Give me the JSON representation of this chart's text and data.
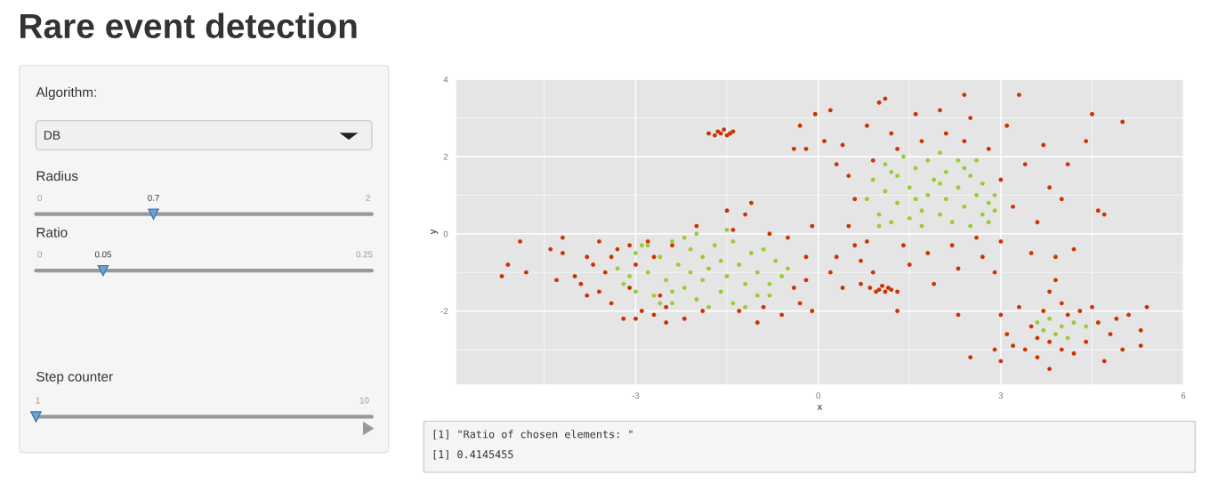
{
  "chart_data": [
    {
      "type": "other",
      "title": "Rare event detection",
      "annotations": [
        "Algorithm:",
        "DB",
        "Radius",
        "0",
        "0.7",
        "2",
        "Ratio",
        "0",
        "0.05",
        "0.25",
        "Step counter",
        "1",
        "10"
      ]
    },
    {
      "type": "scatter",
      "xlabel": "x",
      "ylabel": "y",
      "xlim": [
        -5.95,
        6
      ],
      "ylim": [
        -3.9,
        4
      ],
      "xticks": [
        -3,
        0,
        3,
        6
      ],
      "yticks": [
        -2,
        0,
        2,
        4
      ],
      "grid": true,
      "marker": "circle",
      "legend": false,
      "annotations": [
        "[1] \"Ratio of chosen elements: \"",
        "[1] 0.4145455"
      ],
      "series": [
        {
          "color": "#cc3300",
          "x": [
            -5.2,
            -5.1,
            -4.9,
            -4.8,
            -4.4,
            -4.3,
            -4.2,
            -4.2,
            -4.0,
            -3.9,
            -3.8,
            -3.8,
            -3.7,
            -3.6,
            -3.6,
            -3.5,
            -3.4,
            -3.4,
            -3.3,
            -3.2,
            -3.1,
            -3.1,
            -3.0,
            -3.0,
            -2.8,
            -2.7,
            -2.6,
            -2.5,
            -2.4,
            -2.9,
            -2.7,
            -2.5,
            -2.2,
            -2.0,
            -1.9,
            -1.5,
            -1.4,
            -1.3,
            -1.2,
            -1.1,
            -1.0,
            -0.8,
            -0.6,
            -0.5,
            -0.4,
            -0.3,
            -0.2,
            -0.2,
            -0.1,
            -0.1,
            -0.9,
            -0.4,
            -0.3,
            -0.2,
            -0.05,
            -1.8,
            -1.7,
            -1.65,
            -1.6,
            -1.55,
            -1.5,
            -1.45,
            -1.4,
            0.1,
            0.2,
            0.3,
            0.4,
            0.5,
            0.6,
            0.5,
            0.3,
            0.2,
            0.4,
            0.6,
            0.7,
            0.8,
            0.9,
            0.8,
            0.9,
            1.0,
            1.1,
            1.2,
            1.3,
            1.4,
            1.5,
            1.6,
            1.7,
            1.8,
            1.9,
            2.0,
            2.1,
            2.2,
            2.3,
            2.4,
            2.5,
            2.6,
            2.7,
            2.8,
            2.9,
            3.0,
            3.0,
            3.1,
            3.2,
            3.3,
            3.4,
            3.5,
            3.6,
            3.7,
            3.8,
            3.9,
            4.0,
            4.1,
            4.2,
            4.4,
            4.5,
            4.6,
            4.7,
            5.0,
            2.4,
            0.7,
            1.3,
            2.3,
            3.9,
            3.8,
            0.85,
            0.95,
            1.0,
            1.05,
            1.1,
            1.15,
            1.2,
            1.3,
            3.0,
            3.1,
            3.0,
            3.2,
            3.3,
            3.4,
            3.5,
            3.6,
            3.7,
            3.8,
            3.8,
            4.0,
            4.0,
            4.2,
            4.3,
            4.4,
            4.5,
            4.6,
            4.7,
            4.8,
            4.9,
            5.0,
            5.1,
            5.3,
            5.4,
            5.3,
            4.1,
            3.6,
            2.5,
            2.9
          ],
          "values": [
            -1.1,
            -0.8,
            -0.2,
            -1.0,
            -0.4,
            -1.2,
            -0.1,
            -0.5,
            -1.1,
            -1.3,
            -0.6,
            -1.6,
            -0.8,
            -0.2,
            -1.5,
            -1.0,
            -1.8,
            -0.6,
            -0.4,
            -2.2,
            -0.3,
            -1.4,
            -2.2,
            -0.8,
            -0.2,
            -0.6,
            -1.6,
            -1.9,
            -0.3,
            -2.0,
            -2.1,
            -2.3,
            -2.2,
            0.2,
            -2.0,
            0.6,
            0.1,
            -2.0,
            0.5,
            0.8,
            -2.3,
            0.0,
            -2.1,
            -0.1,
            -1.4,
            -1.8,
            -0.6,
            -1.2,
            0.2,
            -2.0,
            -1.9,
            2.2,
            2.8,
            2.2,
            3.1,
            2.6,
            2.55,
            2.65,
            2.6,
            2.7,
            2.55,
            2.6,
            2.65,
            2.4,
            3.2,
            1.8,
            2.3,
            1.5,
            0.9,
            0.2,
            -0.6,
            -1.0,
            -1.4,
            -0.3,
            -0.7,
            -0.2,
            -1.0,
            2.8,
            1.9,
            3.4,
            3.5,
            2.6,
            2.2,
            -0.3,
            -0.8,
            3.1,
            2.4,
            -0.5,
            -1.3,
            3.2,
            2.6,
            -0.3,
            -0.9,
            2.4,
            3.0,
            -0.1,
            -0.6,
            2.2,
            -1.0,
            1.4,
            -0.2,
            2.8,
            0.7,
            3.6,
            1.8,
            -0.5,
            0.3,
            2.3,
            1.2,
            -0.6,
            0.9,
            1.8,
            -0.4,
            2.4,
            3.1,
            0.6,
            0.5,
            2.9,
            3.6,
            -1.3,
            -2.0,
            -2.1,
            -1.2,
            -1.5,
            -1.4,
            -1.5,
            -1.45,
            -1.35,
            -1.5,
            -1.4,
            -1.45,
            -1.5,
            -2.1,
            -2.6,
            -3.3,
            -2.9,
            -1.9,
            -3.0,
            -2.4,
            -3.2,
            -2.0,
            -2.8,
            -3.5,
            -3.0,
            -1.8,
            -3.1,
            -2.0,
            -2.8,
            -1.9,
            -2.3,
            -3.3,
            -2.6,
            -2.2,
            -3.0,
            -2.1,
            -2.5,
            -1.9,
            -2.9,
            -2.1,
            -2.7,
            -3.2,
            -3.0
          ]
        },
        {
          "color": "#99cc33",
          "x": [
            -3.3,
            -3.2,
            -3.0,
            -3.0,
            -2.9,
            -2.8,
            -2.7,
            -2.6,
            -2.5,
            -2.4,
            -2.4,
            -2.3,
            -2.2,
            -2.1,
            -2.1,
            -2.0,
            -2.0,
            -1.9,
            -1.9,
            -1.8,
            -1.8,
            -1.7,
            -1.6,
            -1.6,
            -1.5,
            -1.4,
            -1.4,
            -1.3,
            -1.2,
            -1.1,
            -1.0,
            -1.0,
            -0.9,
            -0.8,
            -0.7,
            -0.6,
            -0.5,
            -2.6,
            -2.8,
            -3.1,
            -1.5,
            -2.2,
            -0.8,
            -1.2,
            -2.4,
            0.8,
            0.9,
            1.0,
            1.1,
            1.1,
            1.2,
            1.3,
            1.3,
            1.4,
            1.5,
            1.5,
            1.6,
            1.7,
            1.7,
            1.8,
            1.8,
            1.9,
            2.0,
            2.0,
            2.1,
            2.1,
            2.2,
            2.3,
            2.3,
            2.4,
            2.5,
            2.5,
            2.6,
            2.6,
            2.7,
            2.7,
            2.8,
            2.9,
            2.8,
            1.0,
            1.2,
            1.6,
            2.0,
            2.4,
            2.9,
            3.6,
            3.7,
            3.8,
            3.9,
            4.0,
            4.1,
            4.2,
            4.4
          ],
          "values": [
            -0.9,
            -1.3,
            -0.5,
            -1.5,
            -0.3,
            -1.0,
            -1.6,
            -0.6,
            -1.2,
            -0.2,
            -1.8,
            -0.8,
            -1.4,
            -0.4,
            -1.0,
            0.0,
            -1.7,
            -0.6,
            -1.2,
            -0.9,
            -1.9,
            -0.3,
            -1.5,
            -0.7,
            -1.1,
            -0.2,
            -1.8,
            -0.8,
            -1.3,
            -0.5,
            -1.6,
            -1.0,
            -0.4,
            -1.3,
            -0.7,
            -1.1,
            -0.9,
            -1.8,
            -0.3,
            -1.1,
            0.1,
            -0.1,
            -1.6,
            -1.9,
            -1.5,
            0.9,
            1.4,
            0.5,
            1.8,
            1.1,
            0.3,
            0.8,
            1.5,
            2.0,
            0.4,
            1.2,
            1.7,
            0.6,
            0.2,
            1.0,
            1.9,
            1.4,
            0.5,
            2.1,
            0.9,
            1.6,
            0.3,
            1.2,
            1.9,
            0.7,
            1.5,
            0.2,
            1.0,
            1.9,
            0.5,
            1.3,
            0.8,
            1.0,
            0.3,
            0.2,
            1.6,
            0.9,
            1.3,
            1.7,
            0.6,
            -2.3,
            -2.5,
            -2.2,
            -2.6,
            -2.4,
            -2.7,
            -2.3,
            -2.4
          ]
        }
      ]
    }
  ]
}
